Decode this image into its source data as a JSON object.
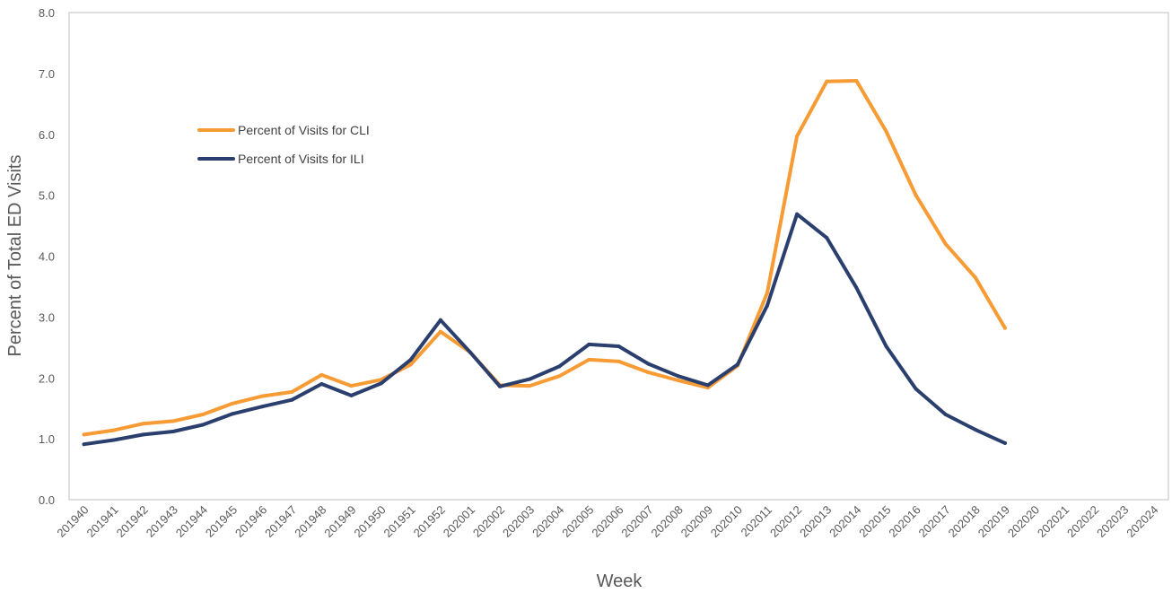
{
  "chart_data": {
    "type": "line",
    "title": "",
    "xlabel": "Week",
    "ylabel": "Percent of Total ED Visits",
    "ylim": [
      0,
      8
    ],
    "yticks": [
      "0.0",
      "1.0",
      "2.0",
      "3.0",
      "4.0",
      "5.0",
      "6.0",
      "7.0",
      "8.0"
    ],
    "grid": false,
    "legend_position": "upper-left",
    "categories": [
      "201940",
      "201941",
      "201942",
      "201943",
      "201944",
      "201945",
      "201946",
      "201947",
      "201948",
      "201949",
      "201950",
      "201951",
      "201952",
      "202001",
      "202002",
      "202003",
      "202004",
      "202005",
      "202006",
      "202007",
      "202008",
      "202009",
      "202010",
      "202011",
      "202012",
      "202013",
      "202014",
      "202015",
      "202016",
      "202017",
      "202018",
      "202019",
      "202020",
      "202021",
      "202022",
      "202023",
      "202024"
    ],
    "series": [
      {
        "name": "Percent of Visits for CLI",
        "color": "#f79b35",
        "values": [
          1.07,
          1.14,
          1.25,
          1.29,
          1.4,
          1.58,
          1.7,
          1.77,
          2.05,
          1.87,
          1.97,
          2.22,
          2.76,
          2.42,
          1.88,
          1.87,
          2.03,
          2.3,
          2.27,
          2.09,
          1.96,
          1.84,
          2.2,
          3.4,
          5.97,
          6.87,
          6.88,
          6.05,
          5.0,
          4.2,
          3.65,
          2.82,
          null,
          null,
          null,
          null,
          null
        ]
      },
      {
        "name": "Percent of Visits for ILI",
        "color": "#2b3f6e",
        "values": [
          0.91,
          0.98,
          1.07,
          1.12,
          1.23,
          1.41,
          1.53,
          1.64,
          1.9,
          1.71,
          1.91,
          2.3,
          2.95,
          2.42,
          1.86,
          1.98,
          2.19,
          2.55,
          2.52,
          2.23,
          2.03,
          1.88,
          2.22,
          3.19,
          4.69,
          4.3,
          3.48,
          2.52,
          1.82,
          1.4,
          1.15,
          0.93,
          null,
          null,
          null,
          null,
          null
        ]
      }
    ]
  }
}
